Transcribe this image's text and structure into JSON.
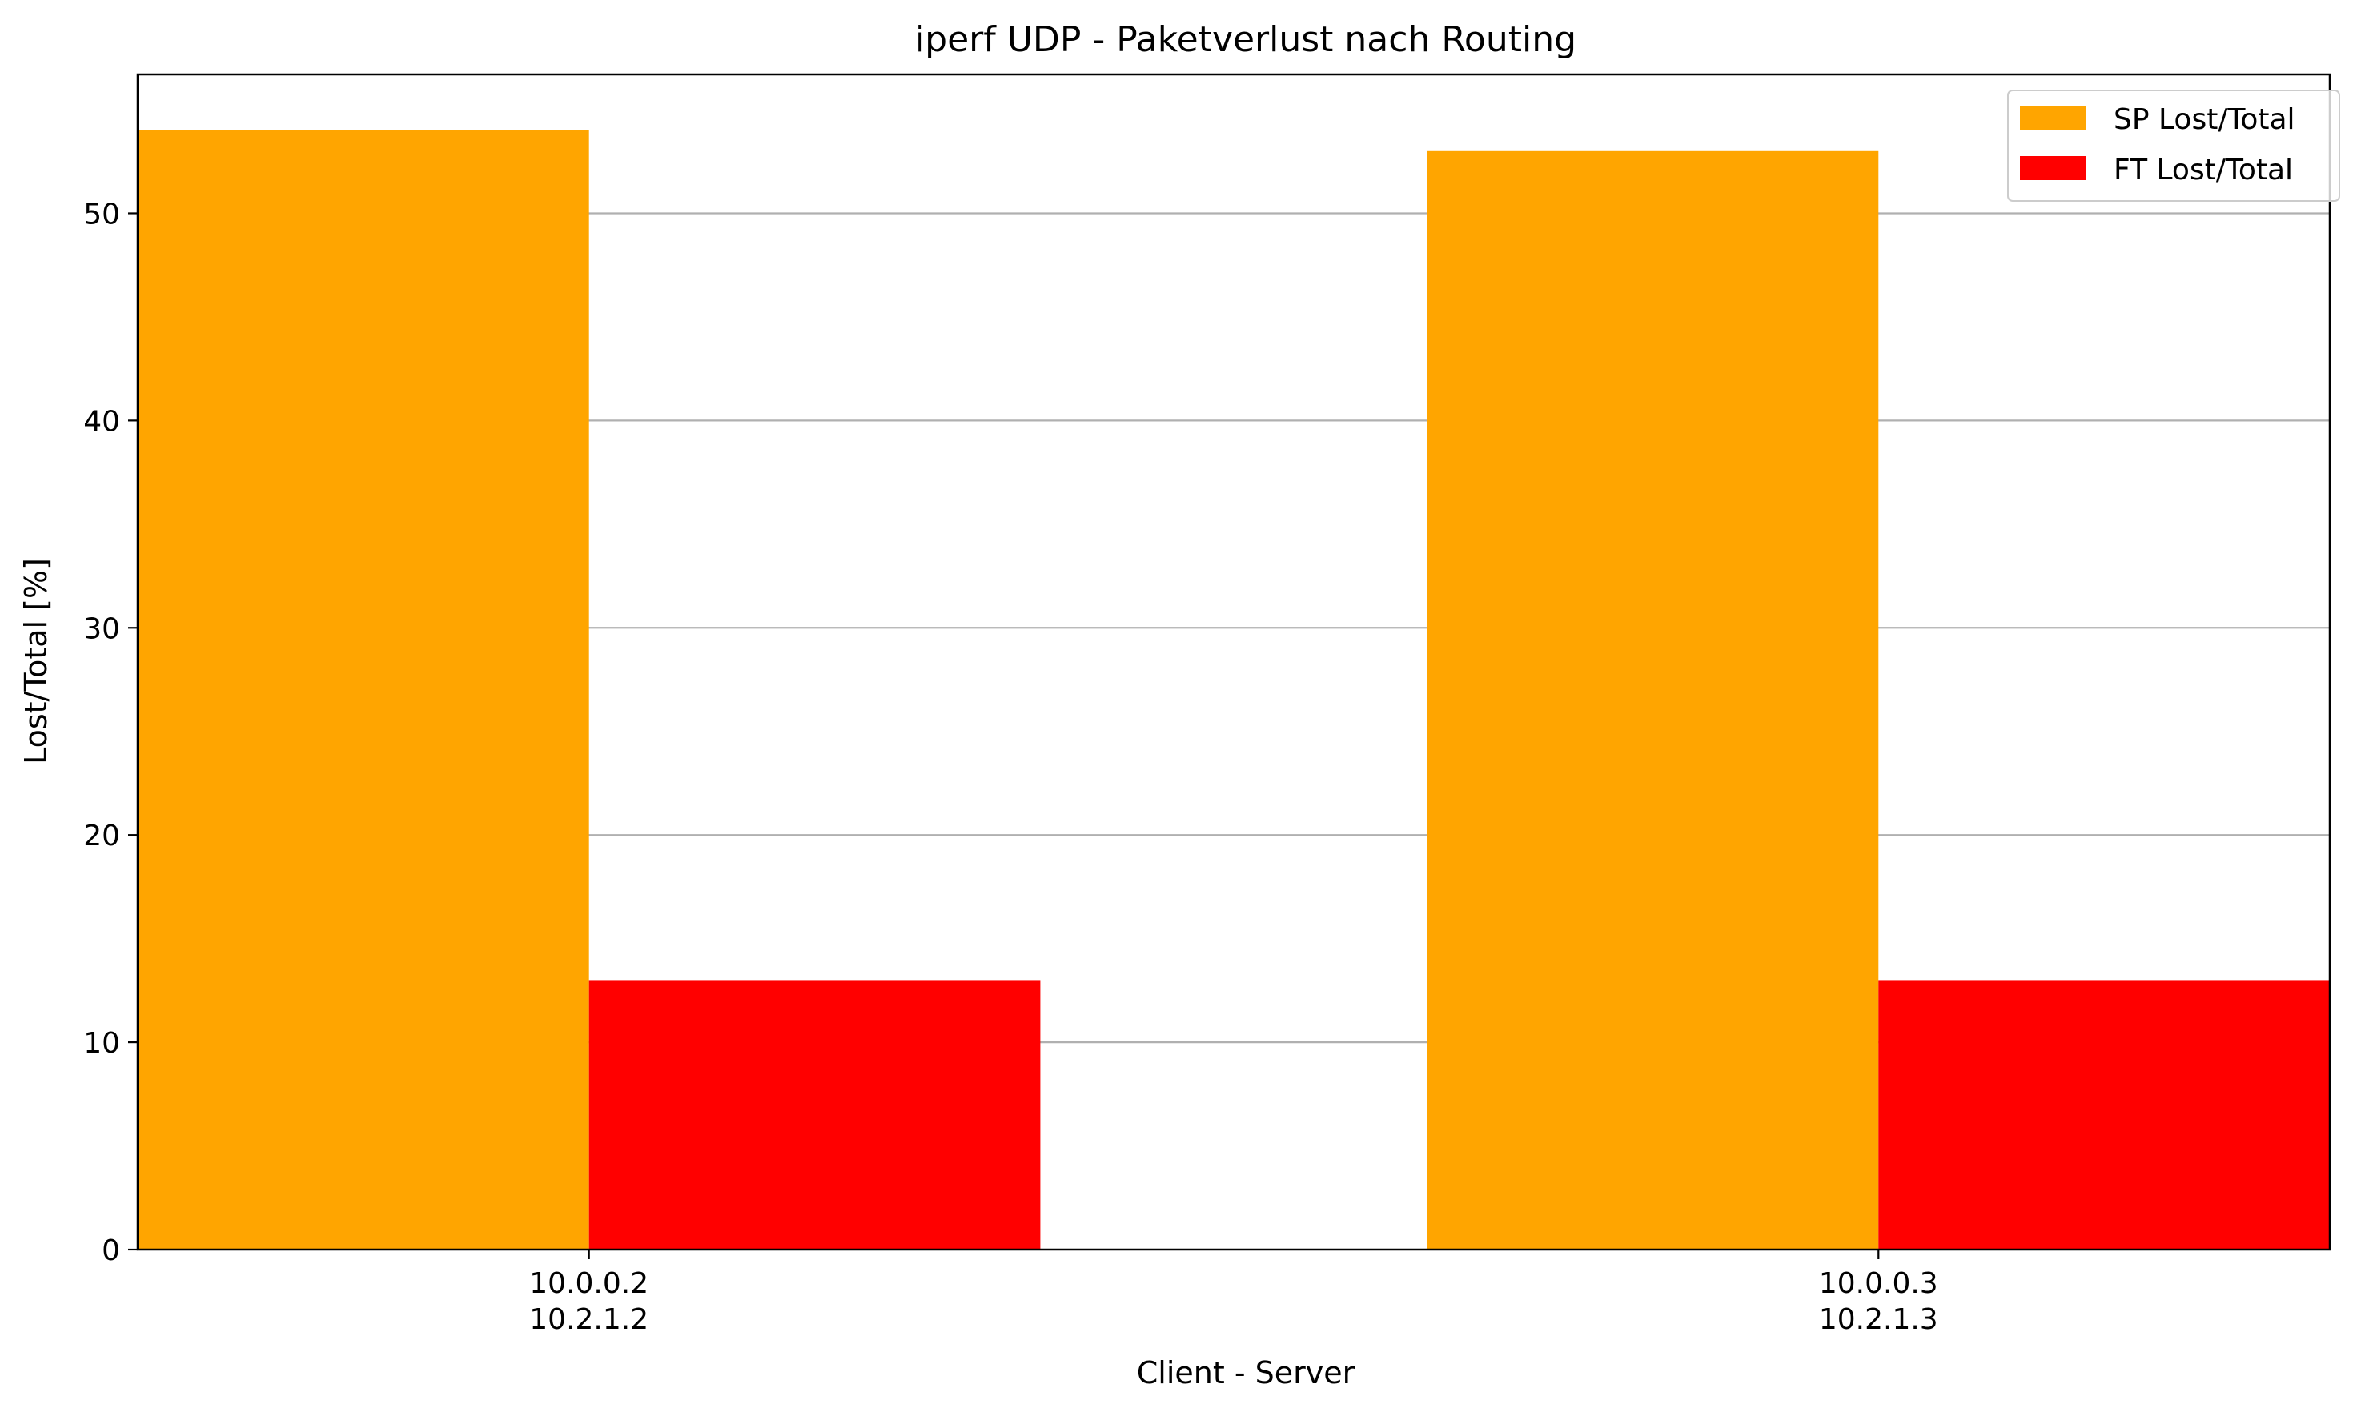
{
  "chart_data": {
    "type": "bar",
    "title": "iperf UDP - Paketverlust nach Routing",
    "xlabel": "Client - Server",
    "ylabel": "Lost/Total [%]",
    "categories": [
      [
        "10.0.0.2",
        "10.2.1.2"
      ],
      [
        "10.0.0.3",
        "10.2.1.3"
      ]
    ],
    "series": [
      {
        "name": "SP Lost/Total",
        "color": "#ffa500",
        "values": [
          54,
          53
        ]
      },
      {
        "name": "FT Lost/Total",
        "color": "#ff0000",
        "values": [
          13,
          13
        ]
      }
    ],
    "ylim": [
      0,
      56.7
    ],
    "yticks": [
      0,
      10,
      20,
      30,
      40,
      50
    ],
    "grid": "y",
    "legend": "top-right"
  }
}
